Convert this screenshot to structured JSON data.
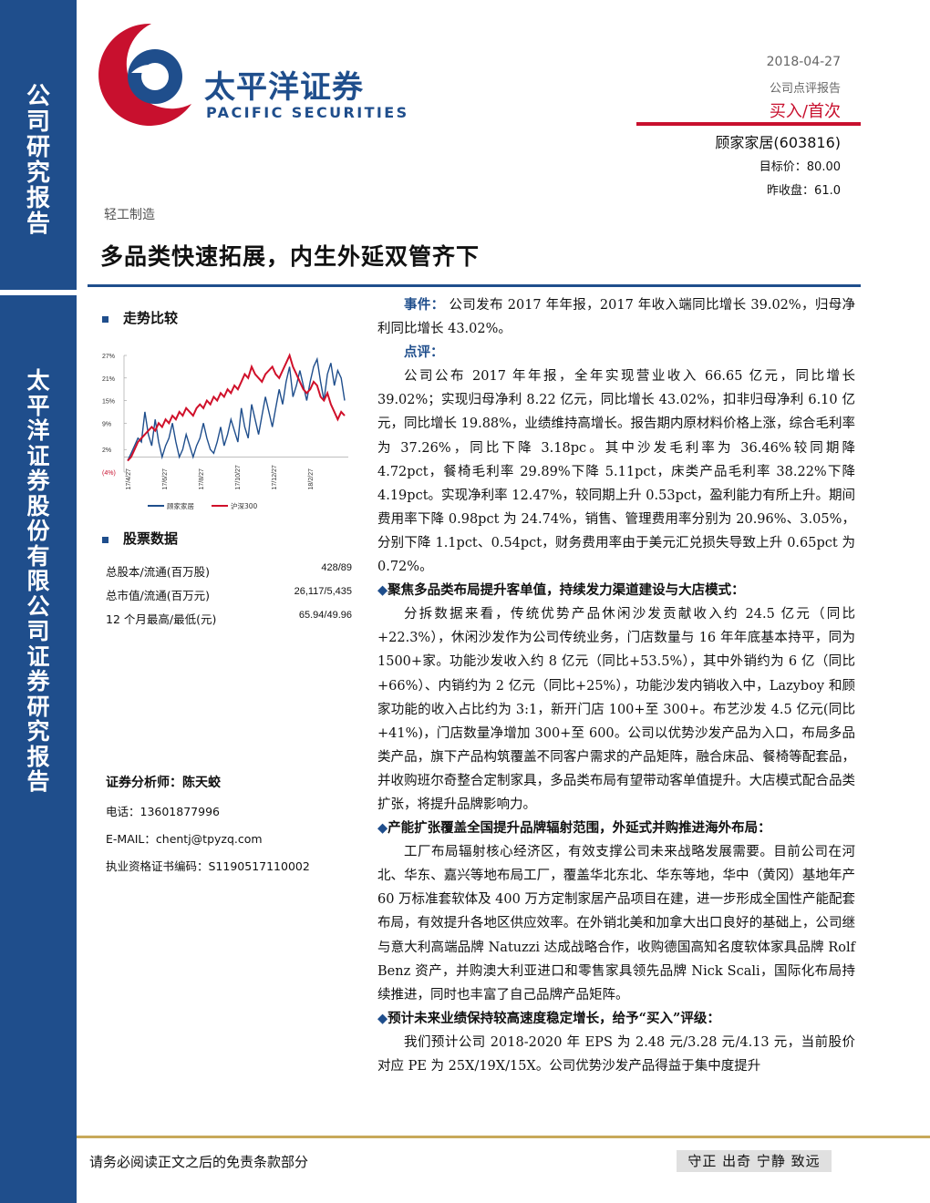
{
  "sidebar": {
    "top_text": "公司研究报告",
    "bottom_text": "太平洋证券股份有限公司证券研究报告"
  },
  "logo": {
    "cn": "太平洋证券",
    "en": "PACIFIC SECURITIES",
    "colors": {
      "red": "#c8102e",
      "blue": "#1f4e8c"
    }
  },
  "header": {
    "date": "2018-04-27",
    "report_type": "公司点评报告",
    "rating": "买入/首次",
    "stock": "顾家家居(603816)",
    "target_price": "目标价：80.00",
    "prev_close": "昨收盘：61.0",
    "industry": "轻工制造",
    "title": "多品类快速拓展，内生外延双管齐下"
  },
  "trend_section": {
    "title": "走势比较"
  },
  "chart_data": {
    "type": "line",
    "ylim": [
      -4,
      27
    ],
    "yticks": [
      "27%",
      "21%",
      "15%",
      "9%",
      "2%",
      "(4%)"
    ],
    "xticks": [
      "17/4/27",
      "17/6/27",
      "17/8/27",
      "17/10/27",
      "17/12/27",
      "18/2/27"
    ],
    "series": [
      {
        "name": "顾家家居",
        "color": "#1f4e8c",
        "values": [
          -1,
          1,
          3,
          5,
          4,
          12,
          6,
          3,
          10,
          4,
          0,
          3,
          5,
          9,
          4,
          0,
          2,
          6,
          3,
          0,
          3,
          5,
          9,
          5,
          2,
          1,
          4,
          8,
          3,
          6,
          10,
          7,
          4,
          13,
          8,
          5,
          14,
          10,
          6,
          11,
          16,
          12,
          8,
          13,
          18,
          14,
          20,
          24,
          16,
          19,
          23,
          19,
          15,
          20,
          24,
          26,
          20,
          15,
          22,
          25,
          19,
          23,
          21,
          15
        ]
      },
      {
        "name": "沪深300",
        "color": "#d0102a",
        "values": [
          -1,
          0,
          2,
          4,
          5,
          6,
          7,
          8,
          7,
          9,
          8,
          10,
          9,
          11,
          10,
          12,
          11,
          13,
          12,
          11,
          13,
          14,
          13,
          15,
          14,
          16,
          15,
          17,
          16,
          18,
          17,
          19,
          18,
          20,
          22,
          21,
          24,
          22,
          21,
          20,
          22,
          23,
          24,
          22,
          21,
          23,
          25,
          27,
          24,
          22,
          20,
          18,
          17,
          18,
          20,
          19,
          16,
          15,
          17,
          14,
          12,
          10,
          12,
          11
        ]
      }
    ]
  },
  "stock_section": {
    "title": "股票数据",
    "rows": [
      {
        "k": "总股本/流通(百万股)",
        "v": "428/89"
      },
      {
        "k": "总市值/流通(百万元)",
        "v": "26,117/5,435"
      },
      {
        "k": "12 个月最高/最低(元)",
        "v": "65.94/49.96"
      }
    ]
  },
  "analyst": {
    "name": "证券分析师：陈天蛟",
    "phone": "电话：13601877996",
    "email": "E-MAIL：chentj@tpyzq.com",
    "cert": "执业资格证书编码：S1190517110002"
  },
  "body": {
    "event_label": "事件：",
    "event_text": "公司发布 2017 年年报，2017 年收入端同比增长 39.02%，归母净利同比增长 43.02%。",
    "comment_label": "点评：",
    "p1": "公司公布 2017 年年报，全年实现营业收入 66.65 亿元，同比增长 39.02%；实现归母净利 8.22 亿元，同比增长 43.02%，扣非归母净利 6.10 亿元，同比增长 19.88%，业绩维持高增长。报告期内原材料价格上涨，综合毛利率为 37.26%，同比下降 3.18pc。其中沙发毛利率为 36.46%较同期降 4.72pct，餐椅毛利率 29.89%下降 5.11pct，床类产品毛利率 38.22%下降 4.19pct。实现净利率 12.47%，较同期上升 0.53pct，盈利能力有所上升。期间费用率下降 0.98pct 为 24.74%，销售、管理费用率分别为 20.96%、3.05%，分别下降 1.1pct、0.54pct，财务费用率由于美元汇兑损失导致上升 0.65pct 为 0.72%。",
    "b1": "聚焦多品类布局提升客单值，持续发力渠道建设与大店模式：",
    "p2": "分拆数据来看，传统优势产品休闲沙发贡献收入约 24.5 亿元（同比+22.3%），休闲沙发作为公司传统业务，门店数量与 16 年年底基本持平，同为 1500+家。功能沙发收入约 8 亿元（同比+53.5%），其中外销约为 6 亿（同比+66%）、内销约为 2 亿元（同比+25%），功能沙发内销收入中，Lazyboy 和顾家功能的收入占比约为 3:1，新开门店 100+至 300+。布艺沙发 4.5 亿元(同比+41%)，门店数量净增加 300+至 600。公司以优势沙发产品为入口，布局多品类产品，旗下产品构筑覆盖不同客户需求的产品矩阵，融合床品、餐椅等配套品，并收购班尔奇整合定制家具，多品类布局有望带动客单值提升。大店模式配合品类扩张，将提升品牌影响力。",
    "b2": "产能扩张覆盖全国提升品牌辐射范围，外延式并购推进海外布局：",
    "p3": "工厂布局辐射核心经济区，有效支撑公司未来战略发展需要。目前公司在河北、华东、嘉兴等地布局工厂，覆盖华北东北、华东等地，华中（黄冈）基地年产 60 万标准套软体及 400 万方定制家居产品项目在建，进一步形成全国性产能配套布局，有效提升各地区供应效率。在外销北美和加拿大出口良好的基础上，公司继与意大利高端品牌 Natuzzi 达成战略合作，收购德国高知名度软体家具品牌 Rolf Benz 资产，并购澳大利亚进口和零售家具领先品牌 Nick Scali，国际化布局持续推进，同时也丰富了自己品牌产品矩阵。",
    "b3": "预计未来业绩保持较高速度稳定增长，给予“买入”评级：",
    "p4": "我们预计公司 2018-2020 年 EPS 为 2.48 元/3.28 元/4.13 元，当前股价对应 PE 为 25X/19X/15X。公司优势沙发产品得益于集中度提升"
  },
  "footer": {
    "left": "请务必阅读正文之后的免责条款部分",
    "right": "守正 出奇 宁静 致远"
  }
}
